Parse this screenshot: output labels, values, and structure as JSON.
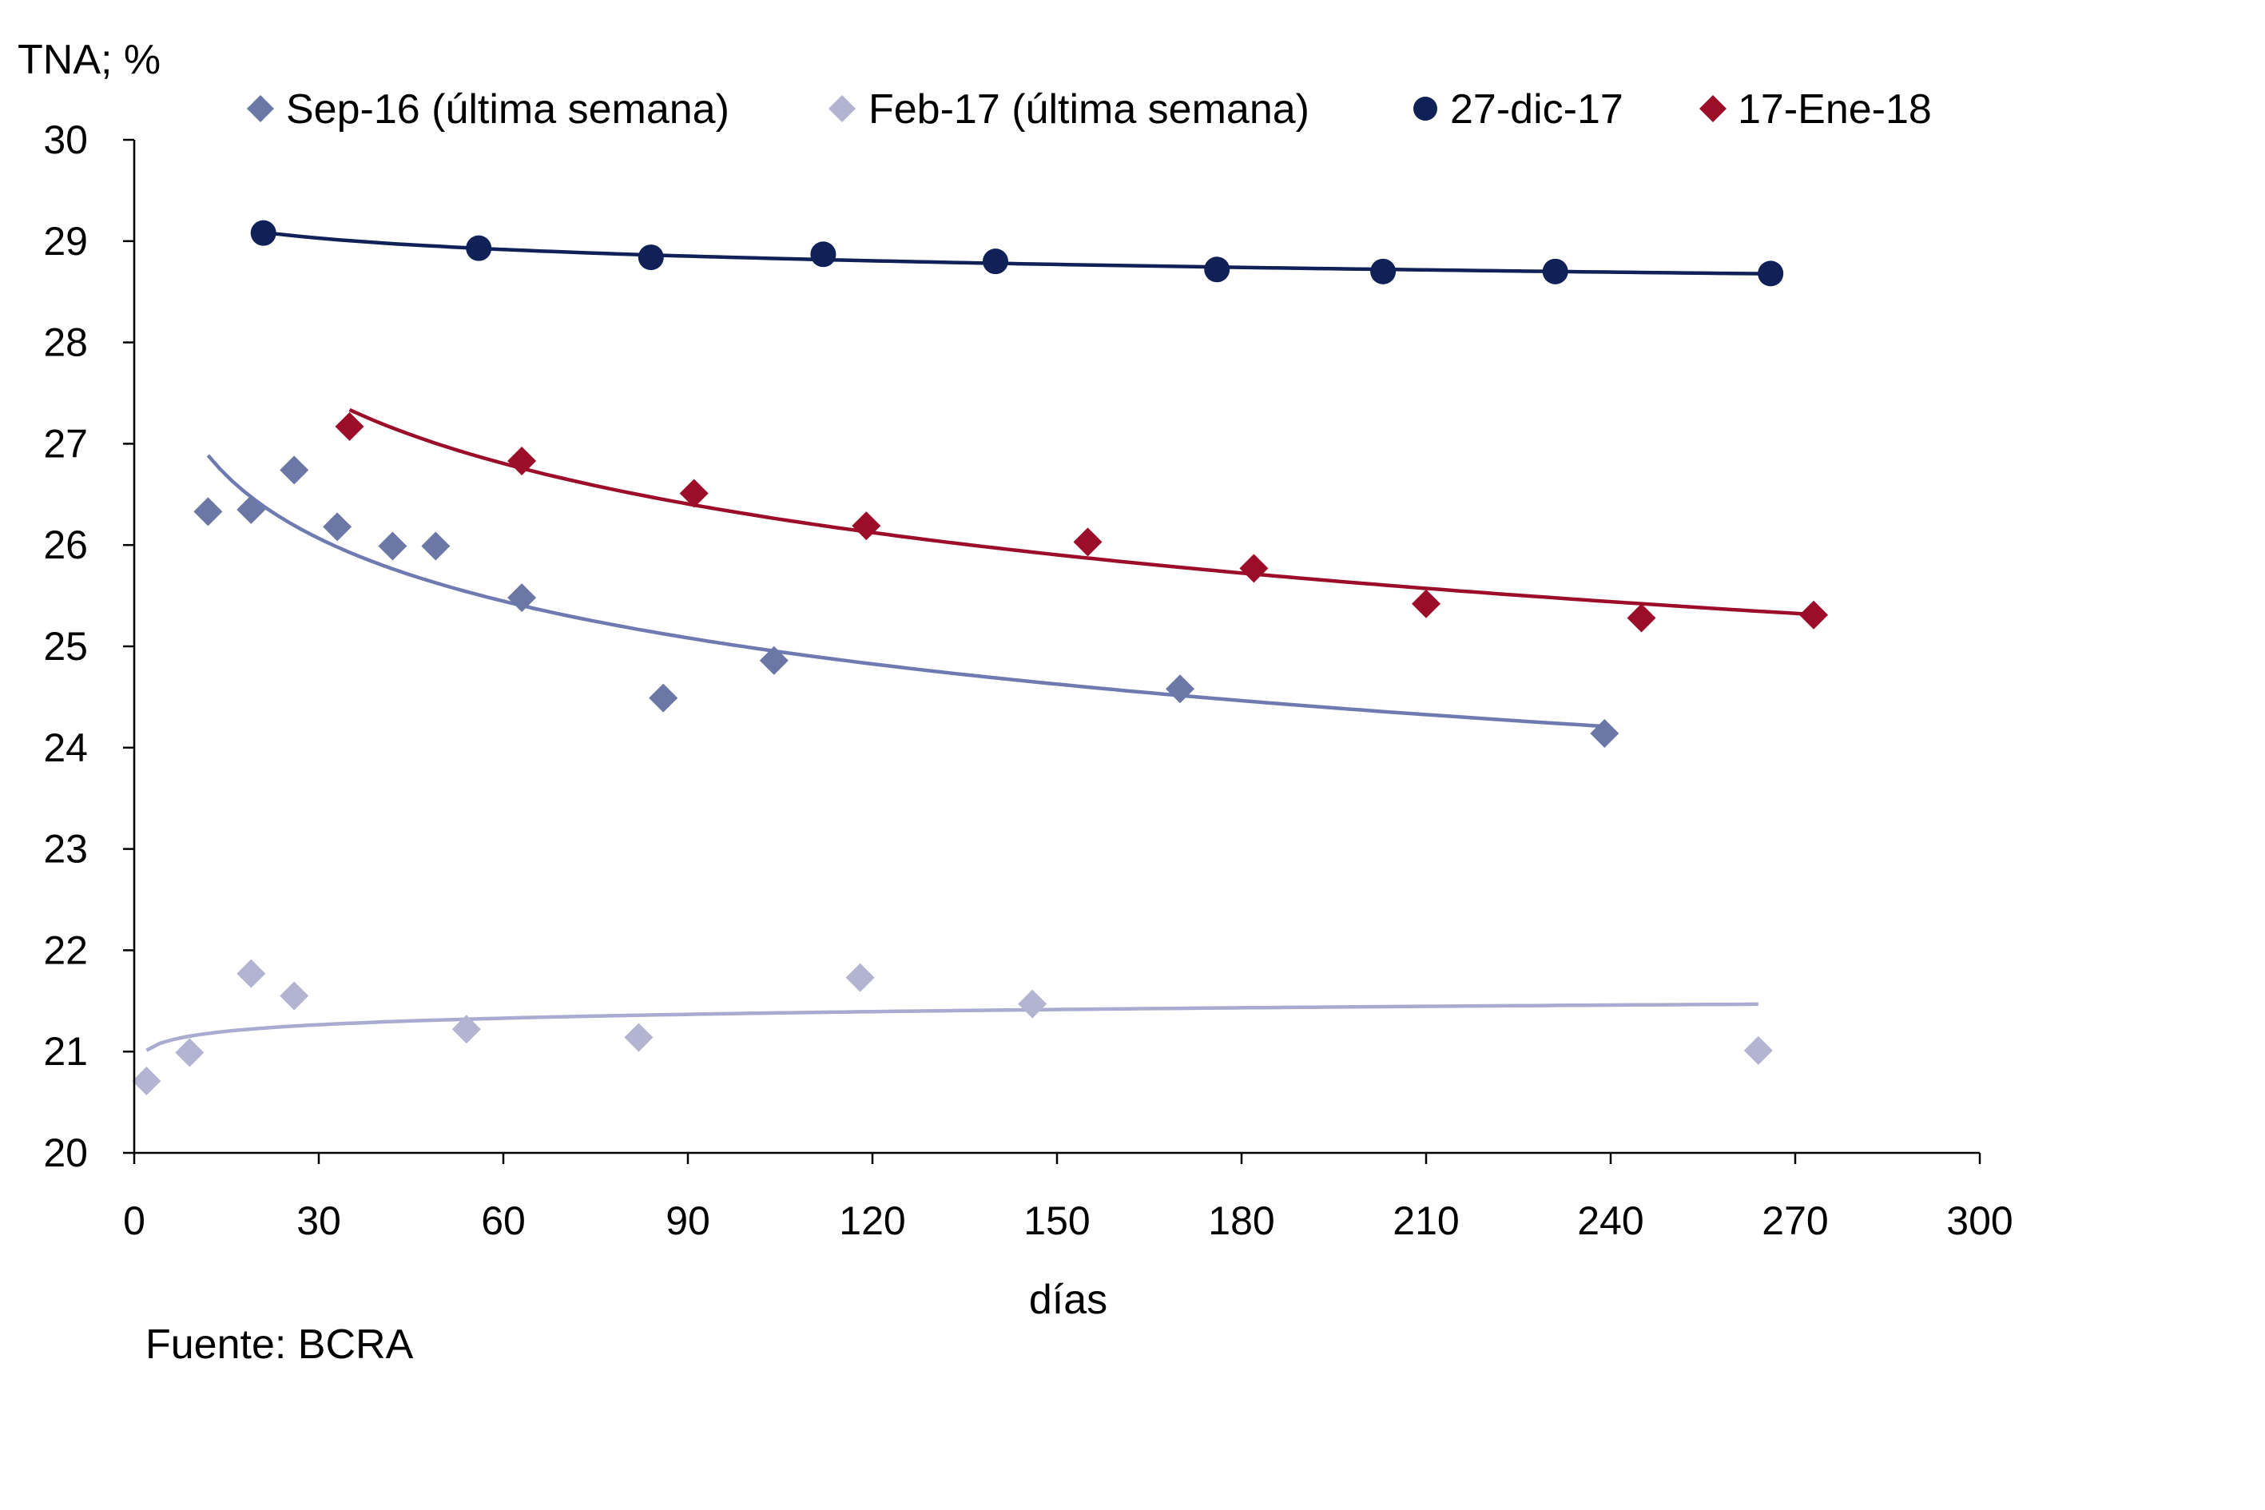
{
  "chart_data": {
    "type": "scatter",
    "ylabel": "TNA; %",
    "xlabel": "días",
    "xlim": [
      0,
      300
    ],
    "ylim": [
      20,
      30
    ],
    "x_ticks": [
      "0",
      "30",
      "60",
      "90",
      "120",
      "150",
      "180",
      "210",
      "240",
      "270",
      "300"
    ],
    "y_ticks": [
      "20",
      "21",
      "22",
      "23",
      "24",
      "25",
      "26",
      "27",
      "28",
      "29",
      "30"
    ],
    "grid": false,
    "legend_position": "top",
    "source": "Fuente:  BCRA",
    "series": [
      {
        "name": "Sep-16 (última semana)",
        "marker": "diamond",
        "color": "#6b77a4",
        "trend_color": "#6f7bb0",
        "trendline": "logarithmic",
        "x": [
          12,
          19,
          26,
          33,
          42,
          49,
          63,
          86,
          104,
          170,
          239
        ],
        "y": [
          26.33,
          26.35,
          26.74,
          26.18,
          25.99,
          25.99,
          25.48,
          24.49,
          24.86,
          24.58,
          24.14
        ]
      },
      {
        "name": "Feb-17 (última semana)",
        "marker": "diamond",
        "color": "#b2b4d2",
        "trend_color": "#a9acd0",
        "trendline": "logarithmic",
        "x": [
          2,
          9,
          19,
          26,
          54,
          82,
          118,
          146,
          264
        ],
        "y": [
          20.71,
          20.99,
          21.77,
          21.55,
          21.22,
          21.14,
          21.73,
          21.47,
          21.01
        ]
      },
      {
        "name": "27-dic-17",
        "marker": "circle",
        "color": "#0f2157",
        "trend_color": "#0f2157",
        "trendline": "logarithmic",
        "x": [
          21,
          56,
          84,
          112,
          140,
          176,
          203,
          231,
          266
        ],
        "y": [
          29.08,
          28.93,
          28.84,
          28.87,
          28.8,
          28.72,
          28.7,
          28.7,
          28.68
        ]
      },
      {
        "name": "17-Ene-18",
        "marker": "diamond",
        "color": "#9c0d2a",
        "trend_color": "#9c0d2a",
        "trendline": "logarithmic",
        "x": [
          35,
          63,
          91,
          119,
          155,
          182,
          210,
          245,
          273
        ],
        "y": [
          27.17,
          26.83,
          26.51,
          26.19,
          26.03,
          25.77,
          25.42,
          25.28,
          25.31
        ]
      }
    ]
  }
}
